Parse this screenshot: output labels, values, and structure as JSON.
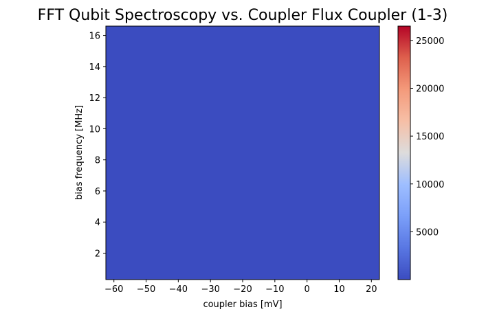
{
  "chart_data": {
    "type": "heatmap",
    "title": "FFT Qubit Spectroscopy vs. Coupler Flux  Coupler (1-3)",
    "xlabel": "coupler bias [mV]",
    "ylabel": "bias frequency [MHz]",
    "xlim": [
      -62.5,
      22.5
    ],
    "ylim": [
      0.3,
      16.6
    ],
    "xticks": [
      -60,
      -50,
      -40,
      -30,
      -20,
      -10,
      0,
      10,
      20
    ],
    "xtick_labels": [
      "−60",
      "−50",
      "−40",
      "−30",
      "−20",
      "−10",
      "0",
      "10",
      "20"
    ],
    "yticks": [
      2,
      4,
      6,
      8,
      10,
      12,
      14,
      16
    ],
    "ytick_labels": [
      "2",
      "4",
      "6",
      "8",
      "10",
      "12",
      "14",
      "16"
    ],
    "colormap": "coolwarm",
    "colorbar": {
      "range": [
        0,
        26500
      ],
      "ticks": [
        5000,
        10000,
        15000,
        20000,
        25000
      ],
      "tick_labels": [
        "5000",
        "10000",
        "15000",
        "20000",
        "25000"
      ]
    },
    "fill_color": "#3b4cc0",
    "grid": false
  }
}
